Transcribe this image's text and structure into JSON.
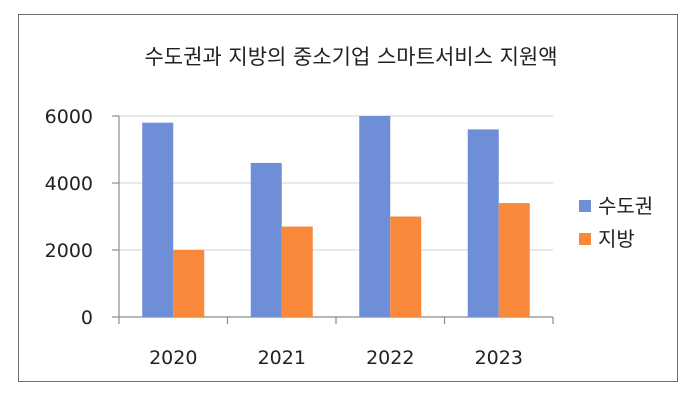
{
  "chart_data": {
    "type": "bar",
    "title": "수도권과 지방의 중소기업 스마트서비스 지원액",
    "xlabel": "",
    "ylabel": "",
    "categories": [
      "2020",
      "2021",
      "2022",
      "2023"
    ],
    "series": [
      {
        "name": "수도권",
        "values": [
          5800,
          4600,
          6000,
          5600
        ],
        "color": "#6f8ed8"
      },
      {
        "name": "지방",
        "values": [
          2000,
          2700,
          3000,
          3400
        ],
        "color": "#f8883a"
      }
    ],
    "ylim": [
      0,
      6000
    ],
    "yticks": [
      "0",
      "2000",
      "4000",
      "6000"
    ],
    "grid": true,
    "legend": "right"
  }
}
